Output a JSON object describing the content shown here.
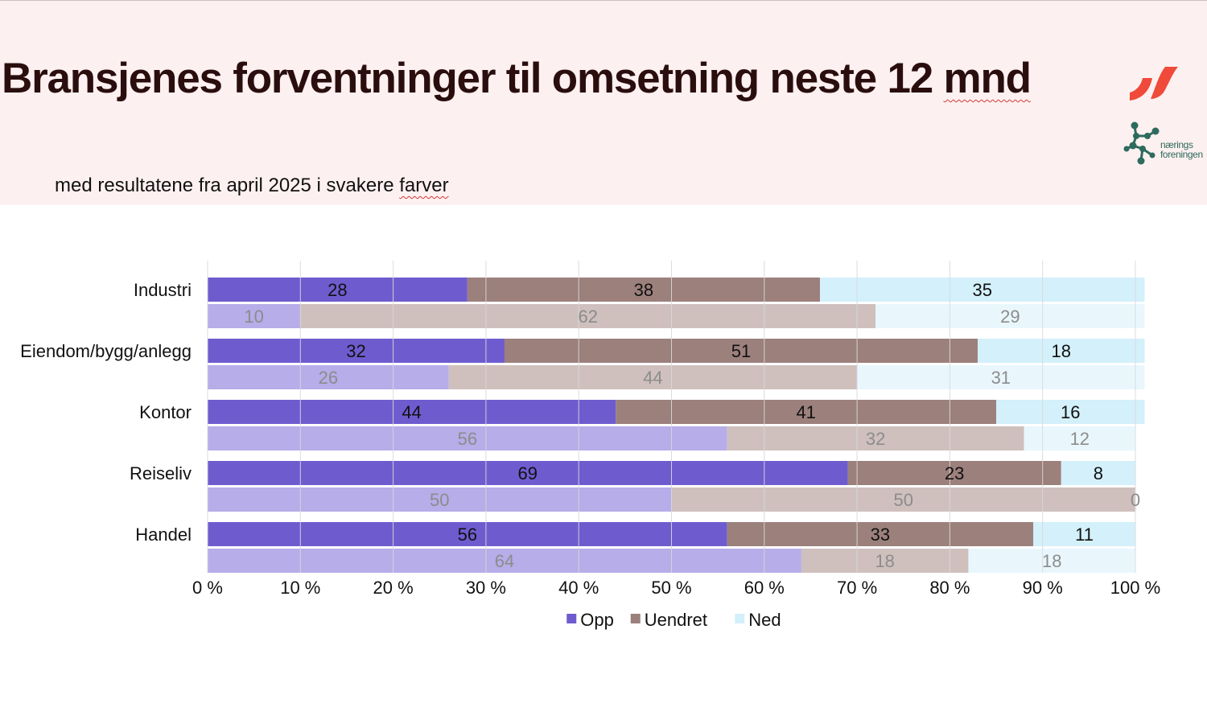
{
  "header": {
    "title_main": "Bransjenes forventninger til omsetning neste 12 ",
    "title_flagged": "mnd",
    "subtitle_main": "med resultatene fra april 2025 i svakere ",
    "subtitle_flagged": "farver",
    "logo_org_line1": "nærings",
    "logo_org_line2": "foreningen"
  },
  "colors": {
    "header_bg": "#fdf0f0",
    "title": "#2a0e0e",
    "logo_red": "#f04a3a",
    "logo_green": "#2d6b5d"
  },
  "chart_data": {
    "type": "bar",
    "orientation": "horizontal",
    "stacked": "percent",
    "categories": [
      "Industri",
      "Eiendom/bygg/anlegg",
      "Kontor",
      "Reiseliv",
      "Handel"
    ],
    "xlim": [
      0,
      100
    ],
    "x_ticks": [
      "0 %",
      "10 %",
      "20 %",
      "30 %",
      "40 %",
      "50 %",
      "60 %",
      "70 %",
      "80 %",
      "90 %",
      "100 %"
    ],
    "grid": true,
    "legend_position": "bottom",
    "series": [
      {
        "name": "Opp",
        "color": "#6e5ccf",
        "faded_color": "#b6ade9",
        "values": [
          28,
          32,
          44,
          69,
          56
        ],
        "previous_values": [
          10,
          26,
          56,
          50,
          64
        ]
      },
      {
        "name": "Uendret",
        "color": "#9c807c",
        "faded_color": "#cfc0be",
        "values": [
          38,
          51,
          41,
          23,
          33
        ],
        "previous_values": [
          62,
          44,
          32,
          50,
          18
        ]
      },
      {
        "name": "Ned",
        "color": "#d3f0fb",
        "faded_color": "#e9f7fd",
        "values": [
          35,
          18,
          16,
          8,
          11
        ],
        "previous_values": [
          29,
          31,
          12,
          0,
          18
        ]
      }
    ]
  }
}
